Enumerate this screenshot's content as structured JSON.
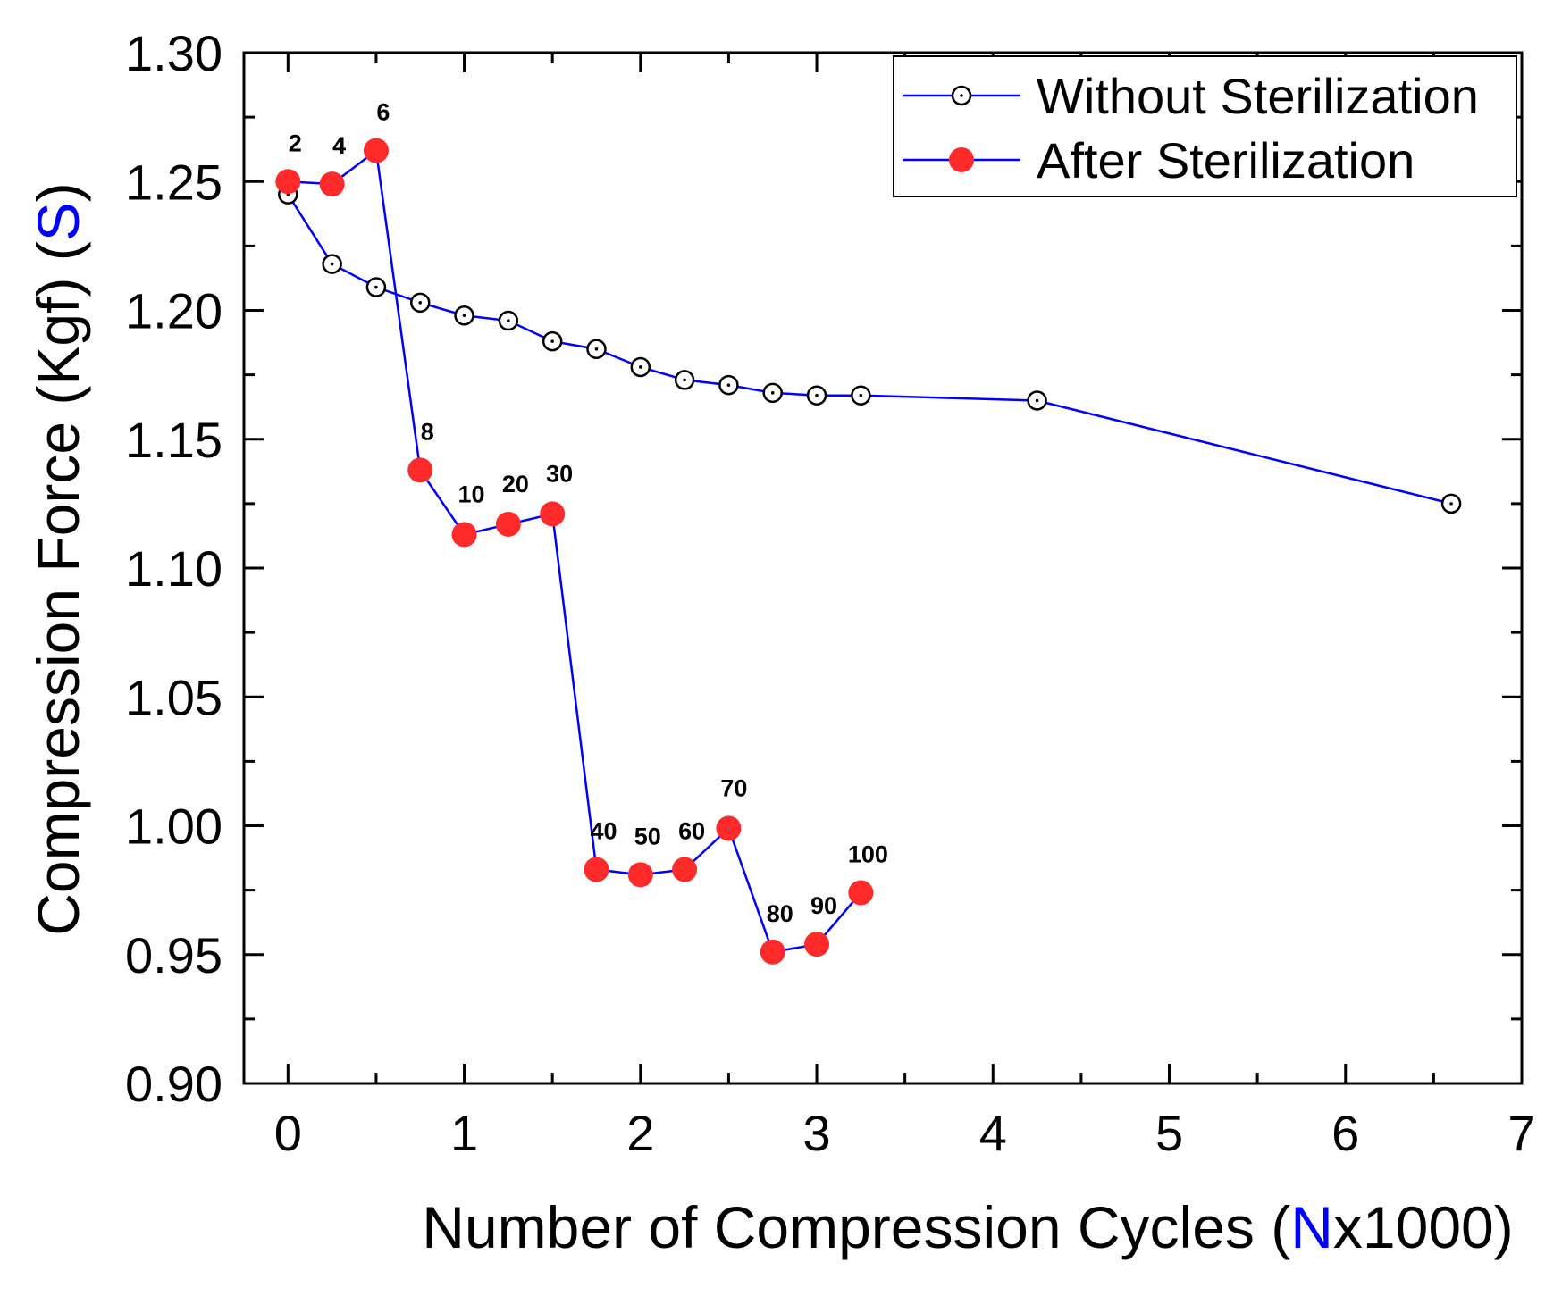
{
  "chart_data": {
    "type": "line",
    "title": "",
    "xlabel": {
      "prefix": "Number of Compression Cycles (",
      "highlight": "N",
      "suffix": "x1000)"
    },
    "ylabel": {
      "prefix": "Compression Force (Kgf) (",
      "highlight": "S",
      "suffix": ")"
    },
    "highlight_color": "#0000ff",
    "xlim": [
      -0.25,
      7
    ],
    "ylim": [
      0.9,
      1.3
    ],
    "x_ticks": [
      0,
      1,
      2,
      3,
      4,
      5,
      6,
      7
    ],
    "x_tick_labels": [
      "0",
      "1",
      "2",
      "3",
      "4",
      "5",
      "6",
      "7"
    ],
    "y_ticks": [
      0.9,
      0.95,
      1.0,
      1.05,
      1.1,
      1.15,
      1.2,
      1.25,
      1.3
    ],
    "y_tick_labels": [
      "0.90",
      "0.95",
      "1.00",
      "1.05",
      "1.10",
      "1.15",
      "1.20",
      "1.25",
      "1.30"
    ],
    "grid": false,
    "legend_position": "top-right",
    "series": [
      {
        "name": "Without Sterilization",
        "line_color": "#0000ff",
        "marker": "open-circle",
        "marker_color": "#000000",
        "x": [
          0,
          0.25,
          0.5,
          0.75,
          1.0,
          1.25,
          1.5,
          1.75,
          2.0,
          2.25,
          2.5,
          2.75,
          3.0,
          3.25,
          4.25,
          6.6
        ],
        "y": [
          1.245,
          1.218,
          1.209,
          1.203,
          1.198,
          1.196,
          1.188,
          1.185,
          1.178,
          1.173,
          1.171,
          1.168,
          1.167,
          1.167,
          1.165,
          1.125
        ]
      },
      {
        "name": "After Sterilization",
        "line_color": "#0000ff",
        "marker": "filled-circle",
        "marker_color": "#ff2a2a",
        "x": [
          0,
          0.25,
          0.5,
          0.75,
          1.0,
          1.25,
          1.5,
          1.75,
          2.0,
          2.25,
          2.5,
          2.75,
          3.0,
          3.25
        ],
        "y": [
          1.25,
          1.249,
          1.262,
          1.138,
          1.113,
          1.117,
          1.121,
          0.983,
          0.981,
          0.983,
          0.999,
          0.951,
          0.954,
          0.974
        ],
        "point_labels": [
          "2",
          "4",
          "6",
          "8",
          "10",
          "20",
          "30",
          "40",
          "50",
          "60",
          "70",
          "80",
          "90",
          "100"
        ]
      }
    ]
  }
}
